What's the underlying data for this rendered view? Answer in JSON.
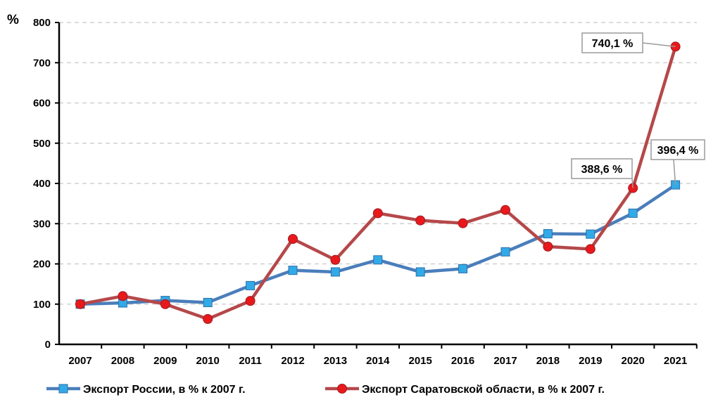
{
  "chart_data": {
    "type": "line",
    "title": "",
    "xlabel": "",
    "ylabel": "%",
    "ylim": [
      0,
      800
    ],
    "yticks": [
      0,
      100,
      200,
      300,
      400,
      500,
      600,
      700,
      800
    ],
    "grid": true,
    "legend_placement": "bottom",
    "categories": [
      "2007",
      "2008",
      "2009",
      "2010",
      "2011",
      "2012",
      "2013",
      "2014",
      "2015",
      "2016",
      "2017",
      "2018",
      "2019",
      "2020",
      "2021"
    ],
    "series": [
      {
        "name": "Экспорт России, в % к 2007 г.",
        "color": "#4a7ebb",
        "marker_color": "#33aae8",
        "marker": "square",
        "values": [
          100,
          103,
          109,
          104,
          146,
          184,
          180,
          210,
          180,
          188,
          230,
          275,
          274,
          326,
          396.4
        ]
      },
      {
        "name": "Экспорт Саратовской области, в % к 2007 г.",
        "color": "#b5484a",
        "marker_color": "#e8191c",
        "marker": "circle",
        "values": [
          100,
          120,
          100,
          63,
          108,
          262,
          210,
          326,
          308,
          301,
          334,
          243,
          237,
          388.6,
          740.1
        ]
      }
    ],
    "annotations": [
      {
        "text": "740,1 %",
        "series": 1,
        "index": 14
      },
      {
        "text": "388,6 %",
        "series": 1,
        "index": 13
      },
      {
        "text": "396,4 %",
        "series": 0,
        "index": 14
      }
    ]
  }
}
